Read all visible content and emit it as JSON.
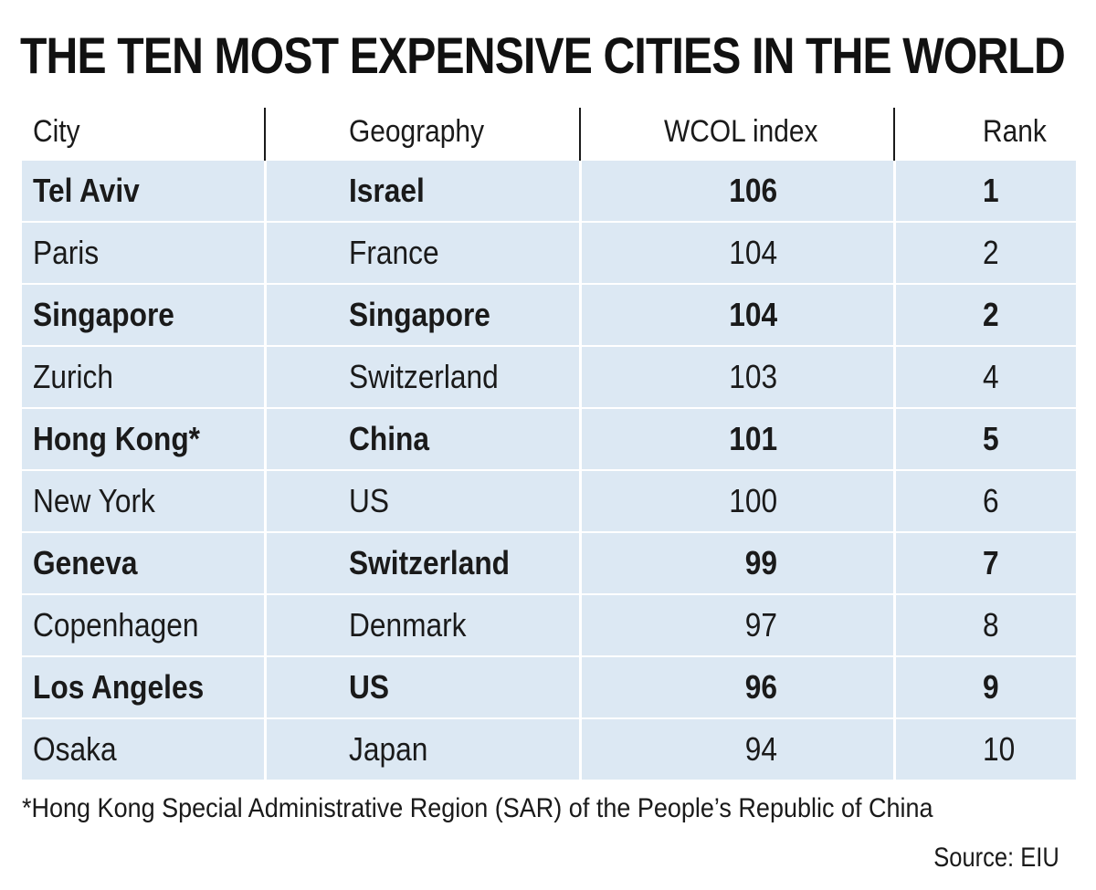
{
  "chart_data": {
    "type": "table",
    "title": "THE TEN MOST EXPENSIVE CITIES IN THE WORLD",
    "columns": [
      "City",
      "Geography",
      "WCOL index",
      "Rank"
    ],
    "rows": [
      {
        "city": "Tel Aviv",
        "geography": "Israel",
        "index": "106",
        "rank": "1",
        "bold": true
      },
      {
        "city": "Paris",
        "geography": "France",
        "index": "104",
        "rank": "2",
        "bold": false
      },
      {
        "city": "Singapore",
        "geography": "Singapore",
        "index": "104",
        "rank": "2",
        "bold": true
      },
      {
        "city": "Zurich",
        "geography": "Switzerland",
        "index": "103",
        "rank": "4",
        "bold": false
      },
      {
        "city": "Hong Kong*",
        "geography": "China",
        "index": "101",
        "rank": "5",
        "bold": true
      },
      {
        "city": "New York",
        "geography": "US",
        "index": "100",
        "rank": "6",
        "bold": false
      },
      {
        "city": "Geneva",
        "geography": "Switzerland",
        "index": "99",
        "rank": "7",
        "bold": true
      },
      {
        "city": "Copenhagen",
        "geography": "Denmark",
        "index": "97",
        "rank": "8",
        "bold": false
      },
      {
        "city": "Los Angeles",
        "geography": "US",
        "index": "96",
        "rank": "9",
        "bold": true
      },
      {
        "city": "Osaka",
        "geography": "Japan",
        "index": "94",
        "rank": "10",
        "bold": false
      }
    ],
    "footnote": "*Hong Kong Special Administrative Region (SAR) of the People’s Republic of China",
    "source": "Source: EIU"
  },
  "colors": {
    "row_background": "#dce8f3",
    "text": "#1a1a1a"
  }
}
